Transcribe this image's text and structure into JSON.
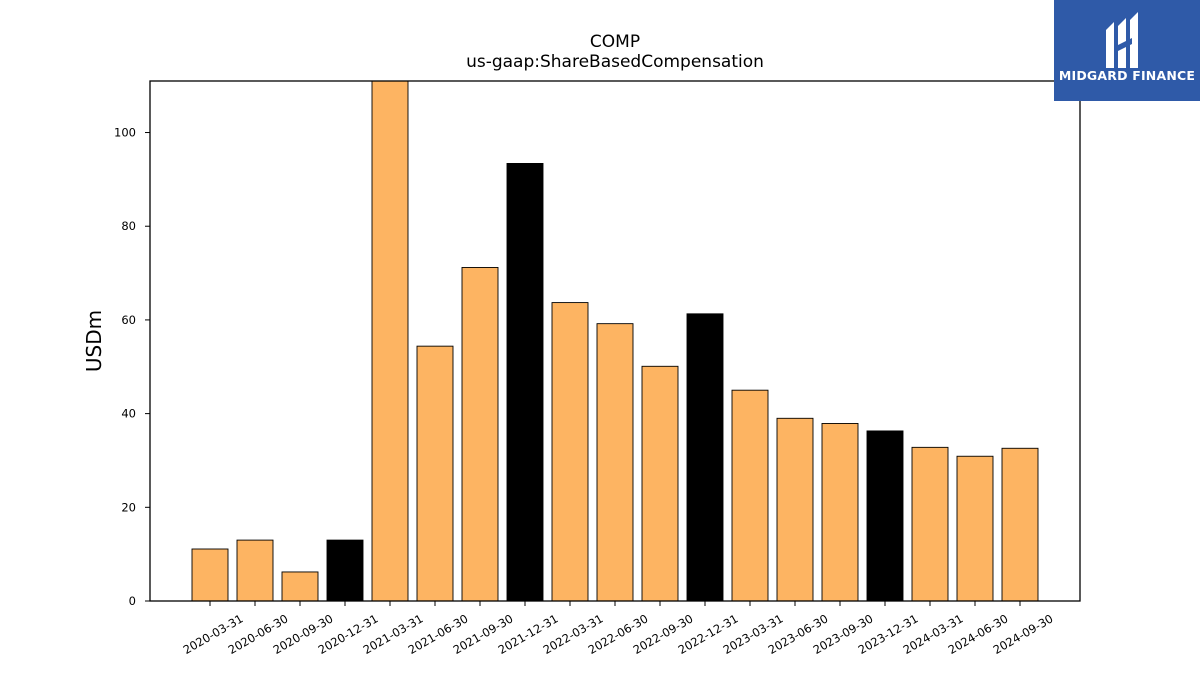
{
  "brand": {
    "name": "MIDGARD FINANCE",
    "color": "#2f5aa8"
  },
  "chart_data": {
    "type": "bar",
    "title": "COMP",
    "subtitle": "us-gaap:ShareBasedCompensation",
    "xlabel": "",
    "ylabel": "USDm",
    "ylim": [
      0,
      111
    ],
    "yticks": [
      0,
      20,
      40,
      60,
      80,
      100
    ],
    "grid": false,
    "categories": [
      "2020-03-31",
      "2020-06-30",
      "2020-09-30",
      "2020-12-31",
      "2021-03-31",
      "2021-06-30",
      "2021-09-30",
      "2021-12-31",
      "2022-03-31",
      "2022-06-30",
      "2022-09-30",
      "2022-12-31",
      "2023-03-31",
      "2023-06-30",
      "2023-09-30",
      "2023-12-31",
      "2024-03-31",
      "2024-06-30",
      "2024-09-30"
    ],
    "values": [
      11.1,
      13.0,
      6.2,
      13.0,
      111.0,
      54.4,
      71.2,
      93.4,
      63.7,
      59.2,
      50.1,
      61.3,
      45.0,
      39.0,
      37.9,
      36.3,
      32.8,
      30.9,
      32.6
    ],
    "colors": {
      "quarter": "#fdb462",
      "year_end": "#000000",
      "edge": "#000000"
    },
    "year_end_categories": [
      "2020-12-31",
      "2021-12-31",
      "2022-12-31",
      "2023-12-31"
    ]
  }
}
